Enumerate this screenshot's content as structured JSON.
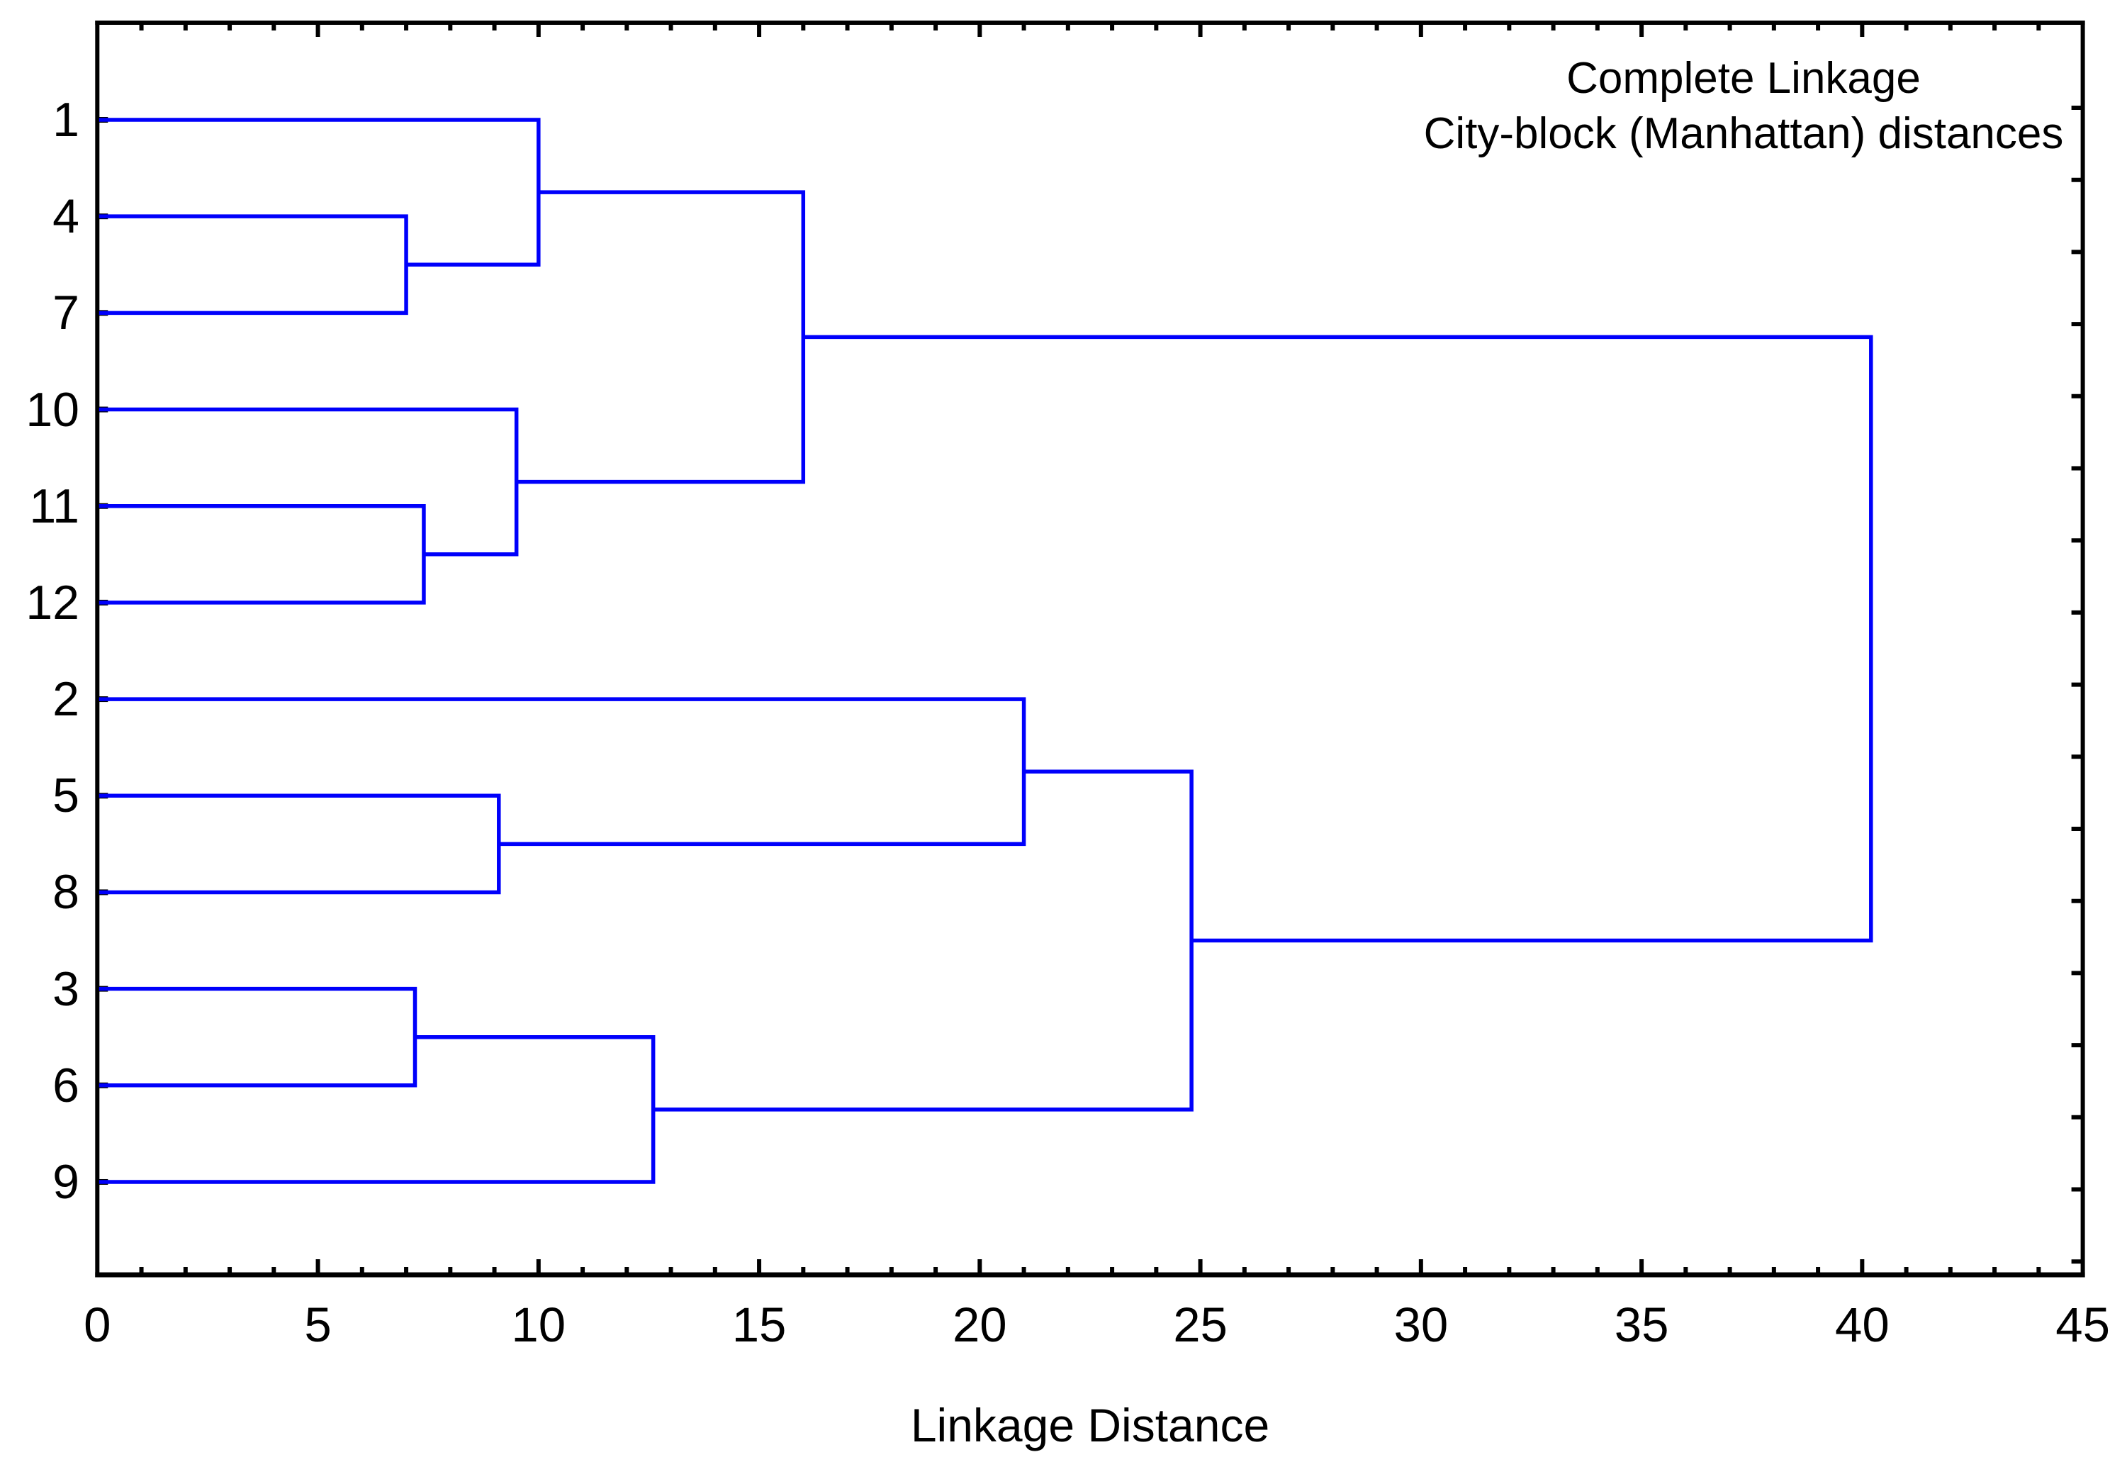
{
  "title": "Complete Linkage",
  "subtitle": "City-block (Manhattan) distances",
  "chart_data": {
    "type": "dendrogram",
    "orientation": "horizontal",
    "title": "Complete Linkage",
    "subtitle": "City-block (Manhattan) distances",
    "xlabel": "Linkage Distance",
    "xlim": [
      0,
      45
    ],
    "x_major_tick_step": 5,
    "x_minor_tick_step": 1,
    "x_tick_labels": [
      "0",
      "5",
      "10",
      "15",
      "20",
      "25",
      "30",
      "35",
      "40",
      "45"
    ],
    "leaves_top_to_bottom": [
      "1",
      "4",
      "7",
      "10",
      "11",
      "12",
      "2",
      "5",
      "8",
      "3",
      "6",
      "9"
    ],
    "merges": [
      {
        "id": "A",
        "children": [
          "4",
          "7"
        ],
        "distance": 7.0
      },
      {
        "id": "C",
        "children": [
          "11",
          "12"
        ],
        "distance": 7.4
      },
      {
        "id": "H",
        "children": [
          "3",
          "6"
        ],
        "distance": 7.2
      },
      {
        "id": "F",
        "children": [
          "5",
          "8"
        ],
        "distance": 9.1
      },
      {
        "id": "D",
        "children": [
          "10",
          "C"
        ],
        "distance": 9.5
      },
      {
        "id": "B",
        "children": [
          "1",
          "A"
        ],
        "distance": 10.0
      },
      {
        "id": "I",
        "children": [
          "H",
          "9"
        ],
        "distance": 12.6
      },
      {
        "id": "E",
        "children": [
          "B",
          "D"
        ],
        "distance": 16.0
      },
      {
        "id": "G",
        "children": [
          "2",
          "F"
        ],
        "distance": 21.0
      },
      {
        "id": "J",
        "children": [
          "G",
          "I"
        ],
        "distance": 24.8
      },
      {
        "id": "K",
        "children": [
          "E",
          "J"
        ],
        "distance": 40.2
      }
    ],
    "line_color": "#0000fb",
    "axis_color": "#000000",
    "grid": false,
    "legend": false
  }
}
